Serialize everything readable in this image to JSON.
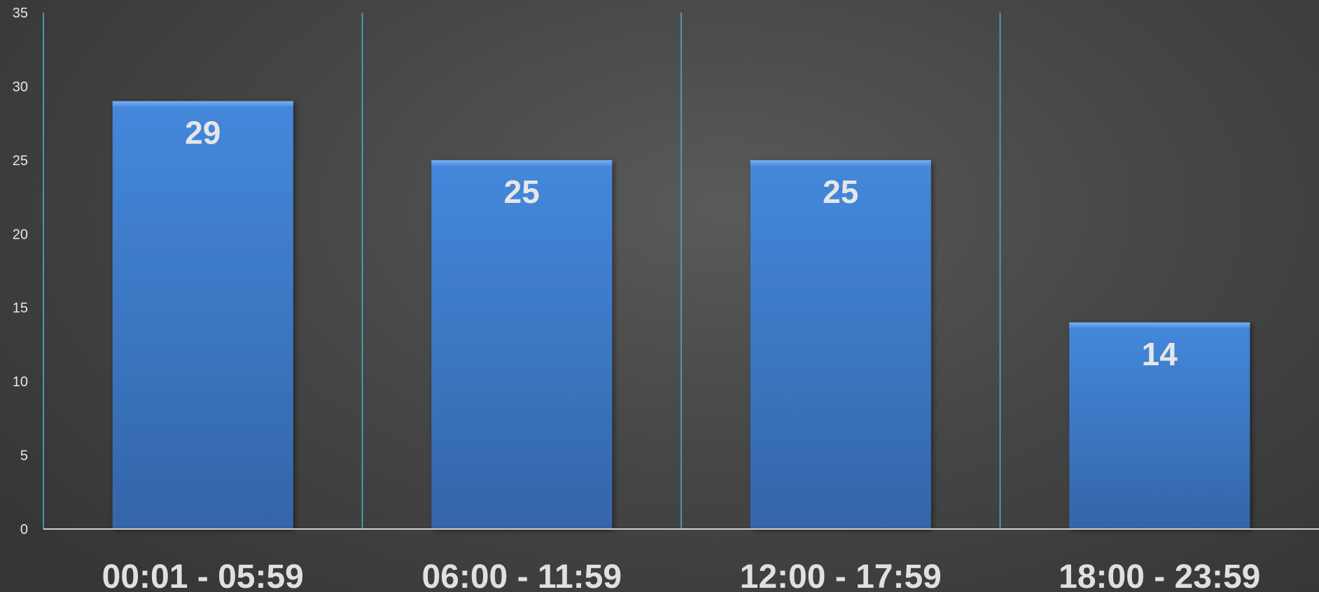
{
  "chart_data": {
    "type": "bar",
    "title": "",
    "xlabel": "",
    "ylabel": "",
    "categories": [
      "00:01 - 05:59",
      "06:00 - 11:59",
      "12:00 - 17:59",
      "18:00 - 23:59"
    ],
    "series": [
      {
        "values": [
          29,
          25,
          25,
          14
        ]
      }
    ],
    "ylim": [
      0,
      35
    ],
    "yticks": [
      "0",
      "5",
      "10",
      "15",
      "20",
      "25",
      "30",
      "35"
    ],
    "data_labels": [
      "29",
      "25",
      "25",
      "14"
    ],
    "grid": false,
    "category_separators": true,
    "legend": "none",
    "colors": {
      "bar": "#3a78c8",
      "bar_top": "#4a8ae0",
      "separator": "#4fb3c8",
      "axis": "#cfcfcf",
      "tick_label": "#e6e6e6",
      "category_label": "#e0e0e0",
      "data_label": "#e6e6e6"
    }
  }
}
